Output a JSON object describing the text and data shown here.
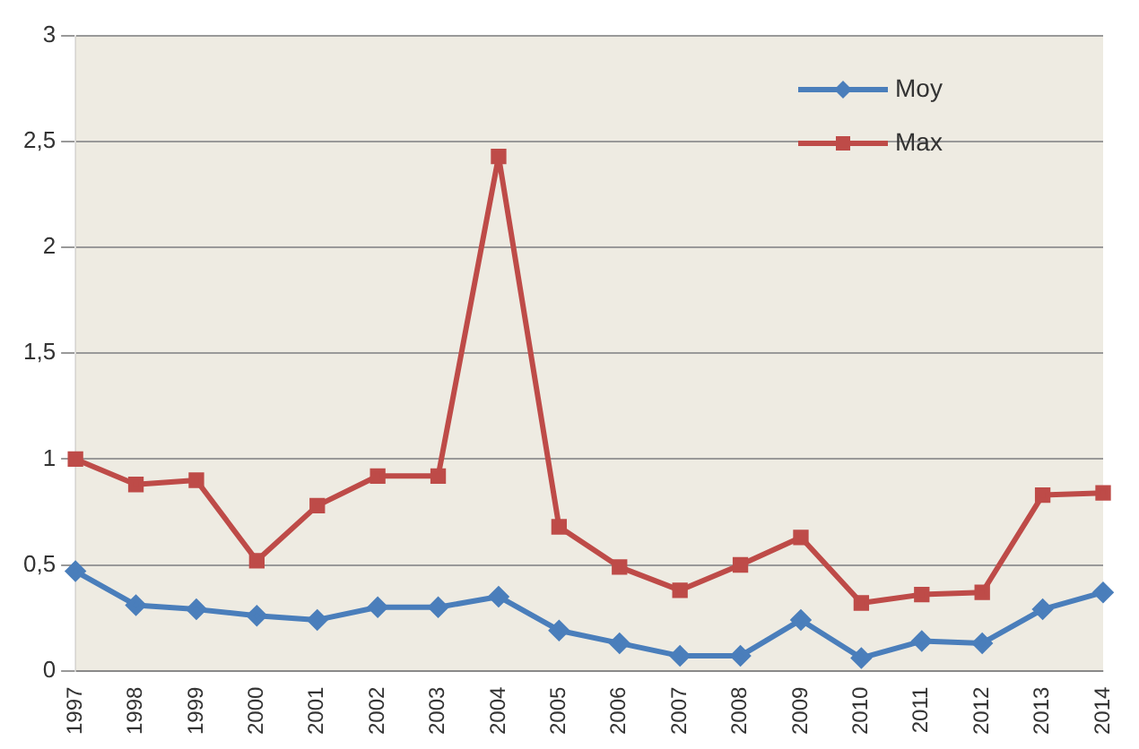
{
  "chart_data": {
    "type": "line",
    "categories": [
      "1997",
      "1998",
      "1999",
      "2000",
      "2001",
      "2002",
      "2003",
      "2004",
      "2005",
      "2006",
      "2007",
      "2008",
      "2009",
      "2010",
      "2011",
      "2012",
      "2013",
      "2014"
    ],
    "series": [
      {
        "name": "Moy",
        "color": "#4a7ebb",
        "marker": "diamond",
        "values": [
          0.47,
          0.31,
          0.29,
          0.26,
          0.24,
          0.3,
          0.3,
          0.35,
          0.19,
          0.13,
          0.07,
          0.07,
          0.24,
          0.06,
          0.14,
          0.13,
          0.29,
          0.37
        ]
      },
      {
        "name": "Max",
        "color": "#be4b48",
        "marker": "square",
        "values": [
          1.0,
          0.88,
          0.9,
          0.52,
          0.78,
          0.92,
          0.92,
          2.43,
          0.68,
          0.49,
          0.38,
          0.5,
          0.63,
          0.32,
          0.36,
          0.37,
          0.83,
          0.84
        ]
      }
    ],
    "ylim": [
      0,
      3
    ],
    "yticks": [
      0,
      {
        "value": 0.5,
        "label": "0,5"
      },
      1,
      {
        "value": 1.5,
        "label": "1,5"
      },
      2,
      {
        "value": 2.5,
        "label": "2,5"
      },
      3
    ],
    "grid": "y",
    "legend": "top right"
  }
}
